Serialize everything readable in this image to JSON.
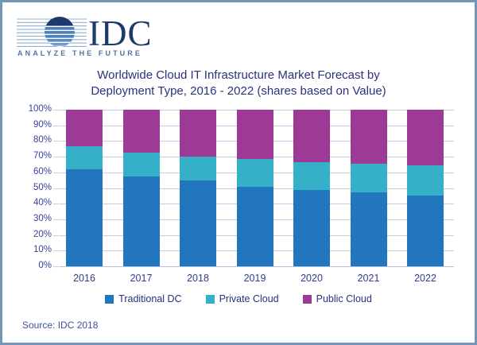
{
  "logo": {
    "brand": "IDC",
    "tagline": "ANALYZE THE FUTURE"
  },
  "title": {
    "line1": "Worldwide Cloud IT Infrastructure Market Forecast by",
    "line2": "Deployment Type, 2016 - 2022 (shares based on Value)"
  },
  "source": "Source: IDC 2018",
  "colors": {
    "traditional_dc": "#2176bd",
    "private_cloud": "#35b0c8",
    "public_cloud": "#9c3a96",
    "gridline": "#cacae8",
    "title_text": "#2a317f",
    "axis_text": "#3b3f9c",
    "frame_border": "#7496ba",
    "logo_navy": "#1c3a6d",
    "logo_blue": "#4b81bb"
  },
  "chart_data": {
    "type": "bar",
    "stacked": true,
    "title": "Worldwide Cloud IT Infrastructure Market Forecast by Deployment Type, 2016 - 2022 (shares based on Value)",
    "categories": [
      "2016",
      "2017",
      "2018",
      "2019",
      "2020",
      "2021",
      "2022"
    ],
    "series": [
      {
        "name": "Traditional DC",
        "color": "#2176bd",
        "values": [
          62,
          57.5,
          55,
          51,
          48.5,
          47,
          45
        ]
      },
      {
        "name": "Private Cloud",
        "color": "#35b0c8",
        "values": [
          14.5,
          15,
          15,
          17.5,
          18,
          18.5,
          19.5
        ]
      },
      {
        "name": "Public Cloud",
        "color": "#9c3a96",
        "values": [
          23.5,
          27.5,
          30,
          31.5,
          33.5,
          34.5,
          35.5
        ]
      }
    ],
    "xlabel": "",
    "ylabel": "",
    "ylim": [
      0,
      100
    ],
    "y_tick_step": 10,
    "y_tick_format": "percent",
    "grid": true,
    "legend_position": "bottom"
  }
}
